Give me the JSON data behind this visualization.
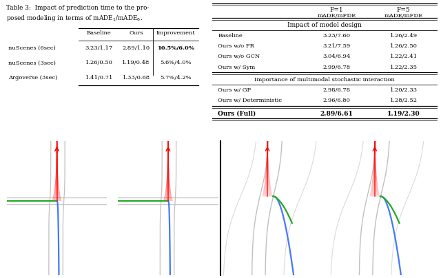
{
  "table3_cols": [
    "",
    "Baseline",
    "Ours",
    "Improvement"
  ],
  "table3_rows": [
    [
      "nuScenes (6sec)",
      "3.23/1.17",
      "2.89/1.10",
      "10.5%/6.0%"
    ],
    [
      "nuScenes (3sec)",
      "1.26/0.50",
      "1.19/0.48",
      "5.6%/4.0%"
    ],
    [
      "Argoverse (3sec)",
      "1.41/0.71",
      "1.33/0.68",
      "5.7%/4.2%"
    ]
  ],
  "table4_section1_header": "Impact of model design",
  "table4_section1_rows": [
    [
      "Baseline",
      "3.23/7.60",
      "1.26/2.49"
    ],
    [
      "Ours w/o FR",
      "3.21/7.59",
      "1.26/2.50"
    ],
    [
      "Ours w/o GCN",
      "3.04/6.94",
      "1.22/2.41"
    ],
    [
      "Ours w/ Sym",
      "2.99/6.78",
      "1.22/2.35"
    ]
  ],
  "table4_section2_header": "Importance of multimodal stochastic interaction",
  "table4_section2_rows": [
    [
      "Ours w/ GP",
      "2.98/6.78",
      "1.20/2.33"
    ],
    [
      "Ours w/ Deterministic",
      "2.96/6.80",
      "1.28/2.52"
    ]
  ],
  "table4_full_row": [
    "Ours (Full)",
    "2.89/6.61",
    "1.19/2.30"
  ]
}
